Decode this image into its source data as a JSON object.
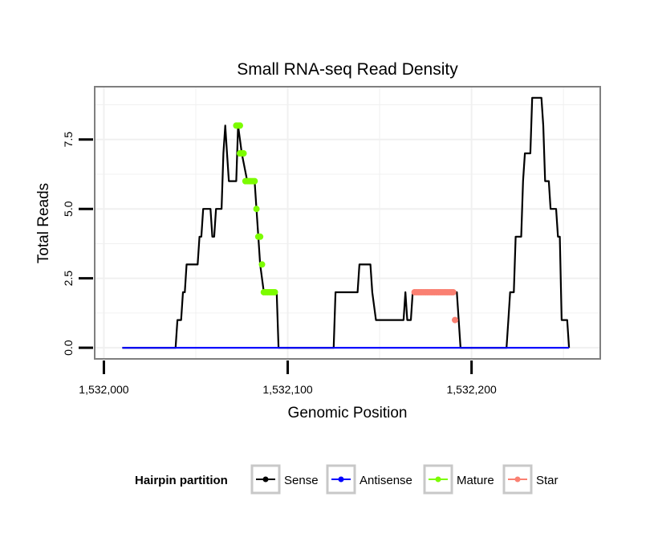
{
  "chart_data": {
    "type": "line",
    "title": "Small RNA-seq Read Density",
    "xlabel": "Genomic Position",
    "ylabel": "Total Reads",
    "xlim": [
      1531995,
      1532270
    ],
    "ylim": [
      -0.4,
      9.4
    ],
    "x_ticks": [
      {
        "value": 1532000,
        "label": "1,532,000"
      },
      {
        "value": 1532100,
        "label": "1,532,100"
      },
      {
        "value": 1532200,
        "label": "1,532,200"
      }
    ],
    "y_ticks": [
      {
        "value": 0,
        "label": "0.0"
      },
      {
        "value": 2.5,
        "label": "2.5"
      },
      {
        "value": 5,
        "label": "5.0"
      },
      {
        "value": 7.5,
        "label": "7.5"
      }
    ],
    "grid": true,
    "legend": {
      "title": "Hairpin partition",
      "position": "bottom",
      "entries": [
        "Sense",
        "Antisense",
        "Mature",
        "Star"
      ]
    },
    "colors": {
      "Sense": "#000000",
      "Antisense": "#0000ff",
      "Mature": "#7cfc00",
      "Star": "#fa8072",
      "panel_border": "#7f7f7f",
      "grid": "#f0f0f0"
    },
    "series": [
      {
        "name": "Sense",
        "style": "line",
        "points": [
          [
            1532010,
            0
          ],
          [
            1532039,
            0
          ],
          [
            1532040,
            1
          ],
          [
            1532042,
            1
          ],
          [
            1532043,
            2
          ],
          [
            1532044,
            2
          ],
          [
            1532045,
            3
          ],
          [
            1532051,
            3
          ],
          [
            1532052,
            4
          ],
          [
            1532053,
            4
          ],
          [
            1532054,
            5
          ],
          [
            1532058,
            5
          ],
          [
            1532059,
            4
          ],
          [
            1532060,
            4
          ],
          [
            1532061,
            5
          ],
          [
            1532064,
            5
          ],
          [
            1532065,
            7
          ],
          [
            1532066,
            8
          ],
          [
            1532067,
            7
          ],
          [
            1532068,
            6
          ],
          [
            1532072,
            6
          ],
          [
            1532073,
            8
          ],
          [
            1532075,
            7
          ],
          [
            1532078,
            6
          ],
          [
            1532082,
            6
          ],
          [
            1532083,
            5
          ],
          [
            1532084,
            4
          ],
          [
            1532085,
            3
          ],
          [
            1532087,
            2
          ],
          [
            1532094,
            2
          ],
          [
            1532095,
            0
          ],
          [
            1532125,
            0
          ],
          [
            1532126,
            2
          ],
          [
            1532138,
            2
          ],
          [
            1532139,
            3
          ],
          [
            1532145,
            3
          ],
          [
            1532146,
            2
          ],
          [
            1532148,
            1
          ],
          [
            1532163,
            1
          ],
          [
            1532164,
            2
          ],
          [
            1532165,
            1
          ],
          [
            1532167,
            1
          ],
          [
            1532168,
            2
          ],
          [
            1532192,
            2
          ],
          [
            1532194,
            0
          ],
          [
            1532219,
            0
          ],
          [
            1532220,
            1
          ],
          [
            1532221,
            2
          ],
          [
            1532223,
            2
          ],
          [
            1532224,
            4
          ],
          [
            1532227,
            4
          ],
          [
            1532228,
            6
          ],
          [
            1532229,
            7
          ],
          [
            1532232,
            7
          ],
          [
            1532233,
            9
          ],
          [
            1532238,
            9
          ],
          [
            1532239,
            8
          ],
          [
            1532240,
            6
          ],
          [
            1532242,
            6
          ],
          [
            1532243,
            5
          ],
          [
            1532246,
            5
          ],
          [
            1532247,
            4
          ],
          [
            1532248,
            4
          ],
          [
            1532249,
            1
          ],
          [
            1532252,
            1
          ],
          [
            1532253,
            0
          ]
        ]
      },
      {
        "name": "Antisense",
        "style": "line",
        "points": [
          [
            1532010,
            0
          ],
          [
            1532253,
            0
          ]
        ]
      },
      {
        "name": "Mature",
        "style": "points",
        "points": [
          [
            1532072,
            8
          ],
          [
            1532073,
            8
          ],
          [
            1532074,
            8
          ],
          [
            1532074,
            7
          ],
          [
            1532075,
            7
          ],
          [
            1532076,
            7
          ],
          [
            1532077,
            6
          ],
          [
            1532078,
            6
          ],
          [
            1532079,
            6
          ],
          [
            1532080,
            6
          ],
          [
            1532081,
            6
          ],
          [
            1532082,
            6
          ],
          [
            1532083,
            5
          ],
          [
            1532084,
            4
          ],
          [
            1532085,
            4
          ],
          [
            1532086,
            3
          ],
          [
            1532087,
            2
          ],
          [
            1532088,
            2
          ],
          [
            1532089,
            2
          ],
          [
            1532090,
            2
          ],
          [
            1532091,
            2
          ],
          [
            1532092,
            2
          ],
          [
            1532093,
            2
          ]
        ]
      },
      {
        "name": "Star",
        "style": "points",
        "points": [
          [
            1532169,
            2
          ],
          [
            1532170,
            2
          ],
          [
            1532171,
            2
          ],
          [
            1532172,
            2
          ],
          [
            1532173,
            2
          ],
          [
            1532174,
            2
          ],
          [
            1532175,
            2
          ],
          [
            1532176,
            2
          ],
          [
            1532177,
            2
          ],
          [
            1532178,
            2
          ],
          [
            1532179,
            2
          ],
          [
            1532180,
            2
          ],
          [
            1532181,
            2
          ],
          [
            1532182,
            2
          ],
          [
            1532183,
            2
          ],
          [
            1532184,
            2
          ],
          [
            1532185,
            2
          ],
          [
            1532186,
            2
          ],
          [
            1532187,
            2
          ],
          [
            1532188,
            2
          ],
          [
            1532189,
            2
          ],
          [
            1532190,
            2
          ],
          [
            1532191,
            1
          ]
        ]
      }
    ]
  }
}
